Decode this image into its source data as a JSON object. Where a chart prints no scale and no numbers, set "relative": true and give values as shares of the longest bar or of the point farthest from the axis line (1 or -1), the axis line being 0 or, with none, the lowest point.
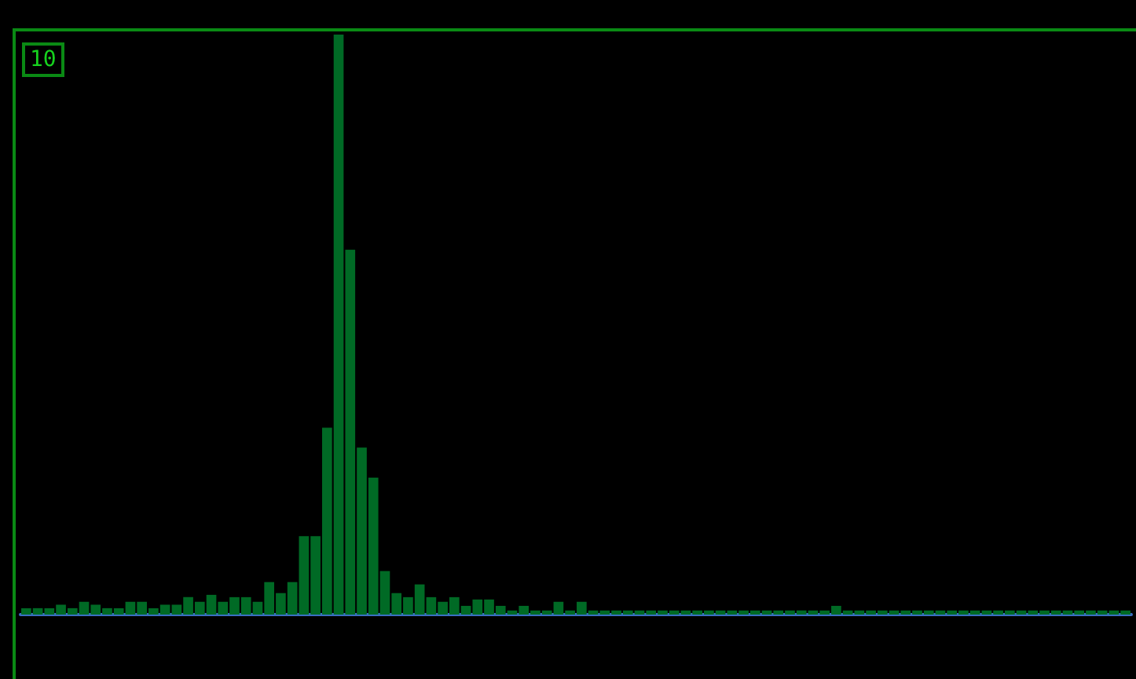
{
  "chart_data": {
    "type": "bar",
    "relative": true,
    "color": "#006a25",
    "annotations": [
      "10"
    ],
    "categories": [
      null,
      null,
      null,
      null,
      null,
      null,
      null,
      null,
      null,
      null,
      null,
      null,
      null,
      null,
      null,
      null,
      null,
      null,
      null,
      null,
      null,
      null,
      null,
      null,
      null,
      null,
      null,
      null,
      null,
      null,
      null,
      null,
      null,
      null,
      null,
      null,
      null,
      null,
      null,
      null,
      null,
      null,
      null,
      null,
      null,
      null,
      null,
      null,
      null,
      null,
      null,
      null,
      null,
      null,
      null,
      null,
      null,
      null,
      null,
      null,
      null,
      null,
      null,
      null,
      null,
      null,
      null,
      null,
      null,
      null,
      null,
      null,
      null,
      null,
      null,
      null,
      null,
      null,
      null,
      null,
      null,
      null,
      null,
      null,
      null,
      null,
      null,
      null,
      null,
      null,
      null,
      null,
      null,
      null,
      null,
      null
    ],
    "values": [
      0.011,
      0.011,
      0.011,
      0.017,
      0.011,
      0.022,
      0.017,
      0.011,
      0.011,
      0.022,
      0.022,
      0.011,
      0.017,
      0.017,
      0.03,
      0.022,
      0.034,
      0.022,
      0.03,
      0.03,
      0.022,
      0.056,
      0.037,
      0.056,
      0.135,
      0.135,
      0.322,
      1,
      0.629,
      0.288,
      0.236,
      0.075,
      0.037,
      0.03,
      0.052,
      0.03,
      0.022,
      0.03,
      0.015,
      0.026,
      0.026,
      0.015,
      0.007,
      0.015,
      0.007,
      0.007,
      0.022,
      0.007,
      0.022,
      0.007,
      0.007,
      0.007,
      0.007,
      0.007,
      0.007,
      0.007,
      0.007,
      0.007,
      0.007,
      0.007,
      0.007,
      0.007,
      0.007,
      0.007,
      0.007,
      0.007,
      0.007,
      0.007,
      0.007,
      0.007,
      0.015,
      0.007,
      0.007,
      0.007,
      0.007,
      0.007,
      0.007,
      0.007,
      0.007,
      0.007,
      0.007,
      0.007,
      0.007,
      0.007,
      0.007,
      0.007,
      0.007,
      0.007,
      0.007,
      0.007,
      0.007,
      0.007,
      0.007,
      0.007,
      0.007,
      0.007
    ]
  }
}
